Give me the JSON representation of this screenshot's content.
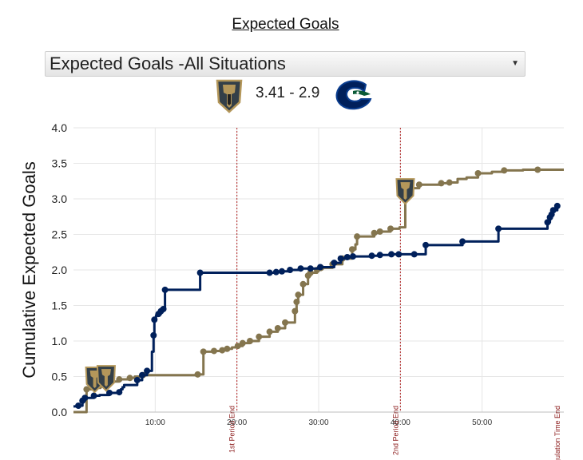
{
  "page": {
    "title": "Expected Goals",
    "dropdown": {
      "selected": "Expected Goals -All Situations"
    },
    "score_text": "3.41 - 2.9"
  },
  "colors": {
    "home": "#84754e",
    "away": "#00205b",
    "period_line": "#b22222",
    "grid": "#e6e6e6"
  },
  "icons": {
    "home_logo": "golden-knights-logo-icon",
    "away_logo": "canucks-logo-icon",
    "goal_marker": "golden-knights-goal-marker-icon"
  },
  "chart_data": {
    "type": "line",
    "ylabel": "Cumulative Expected Goals",
    "xlabel": "",
    "ylim": [
      0,
      4
    ],
    "xlim": [
      0,
      60
    ],
    "y_ticks": [
      "0.0",
      "0.5",
      "1.0",
      "1.5",
      "2.0",
      "2.5",
      "3.0",
      "3.5",
      "4.0"
    ],
    "x_ticks": [
      {
        "value": 10,
        "label": "10:00"
      },
      {
        "value": 20,
        "label": "20:00"
      },
      {
        "value": 30,
        "label": "30:00"
      },
      {
        "value": 40,
        "label": "40:00"
      },
      {
        "value": 50,
        "label": "50:00"
      }
    ],
    "period_lines": [
      {
        "x": 20,
        "label": "1st Period End"
      },
      {
        "x": 40,
        "label": "2nd Period End"
      },
      {
        "x": 60,
        "label": "Regulation Time End"
      }
    ],
    "series": [
      {
        "team": "home",
        "step_points": [
          [
            0,
            0
          ],
          [
            1.6,
            0
          ],
          [
            1.6,
            0.32
          ],
          [
            2.6,
            0.34
          ],
          [
            3.3,
            0.38
          ],
          [
            4.2,
            0.43
          ],
          [
            5.6,
            0.46
          ],
          [
            6.9,
            0.48
          ],
          [
            7.5,
            0.5
          ],
          [
            8.5,
            0.52
          ],
          [
            15.2,
            0.53
          ],
          [
            15.9,
            0.85
          ],
          [
            17.2,
            0.86
          ],
          [
            18.2,
            0.87
          ],
          [
            18.8,
            0.89
          ],
          [
            19.4,
            0.91
          ],
          [
            20.1,
            0.93
          ],
          [
            20.7,
            0.97
          ],
          [
            21.6,
            1.0
          ],
          [
            22.7,
            1.06
          ],
          [
            24.0,
            1.13
          ],
          [
            25.0,
            1.18
          ],
          [
            25.9,
            1.26
          ],
          [
            27.1,
            1.42
          ],
          [
            27.3,
            1.55
          ],
          [
            27.5,
            1.65
          ],
          [
            28.1,
            1.8
          ],
          [
            28.7,
            1.92
          ],
          [
            29.0,
            1.96
          ],
          [
            29.8,
            2.0
          ],
          [
            30.3,
            2.03
          ],
          [
            31.7,
            2.08
          ],
          [
            32.9,
            2.16
          ],
          [
            34.1,
            2.29
          ],
          [
            34.5,
            2.36
          ],
          [
            34.7,
            2.47
          ],
          [
            36.8,
            2.52
          ],
          [
            37.5,
            2.54
          ],
          [
            38.8,
            2.58
          ],
          [
            39.9,
            2.6
          ],
          [
            40.6,
            3.1
          ],
          [
            41.1,
            3.15
          ],
          [
            42.3,
            3.2
          ],
          [
            45.0,
            3.22
          ],
          [
            46.0,
            3.23
          ],
          [
            47.0,
            3.28
          ],
          [
            48.1,
            3.3
          ],
          [
            49.5,
            3.36
          ],
          [
            51.2,
            3.38
          ],
          [
            52.7,
            3.4
          ],
          [
            55.0,
            3.41
          ],
          [
            56.8,
            3.41
          ],
          [
            60,
            3.41
          ]
        ],
        "shots": [
          [
            1.6,
            0.32
          ],
          [
            2.6,
            0.34
          ],
          [
            3.3,
            0.38
          ],
          [
            4.2,
            0.43
          ],
          [
            5.6,
            0.46
          ],
          [
            6.9,
            0.48
          ],
          [
            8.5,
            0.52
          ],
          [
            15.2,
            0.53
          ],
          [
            15.9,
            0.85
          ],
          [
            17.2,
            0.86
          ],
          [
            18.2,
            0.87
          ],
          [
            18.8,
            0.89
          ],
          [
            20.1,
            0.93
          ],
          [
            20.7,
            0.97
          ],
          [
            21.6,
            1.0
          ],
          [
            22.7,
            1.06
          ],
          [
            24.0,
            1.13
          ],
          [
            25.0,
            1.18
          ],
          [
            25.9,
            1.26
          ],
          [
            27.1,
            1.42
          ],
          [
            27.3,
            1.55
          ],
          [
            27.5,
            1.65
          ],
          [
            28.1,
            1.8
          ],
          [
            28.7,
            1.92
          ],
          [
            29.0,
            1.96
          ],
          [
            29.8,
            2.0
          ],
          [
            30.3,
            2.03
          ],
          [
            31.7,
            2.08
          ],
          [
            32.9,
            2.16
          ],
          [
            34.1,
            2.29
          ],
          [
            34.7,
            2.47
          ],
          [
            36.8,
            2.52
          ],
          [
            37.5,
            2.54
          ],
          [
            38.8,
            2.58
          ],
          [
            41.1,
            3.15
          ],
          [
            42.3,
            3.2
          ],
          [
            45.0,
            3.22
          ],
          [
            46.0,
            3.23
          ],
          [
            49.5,
            3.36
          ],
          [
            52.7,
            3.4
          ],
          [
            56.8,
            3.41
          ]
        ],
        "goals": [
          [
            2.6,
            0.45
          ],
          [
            4.0,
            0.47
          ],
          [
            40.6,
            3.1
          ]
        ]
      },
      {
        "team": "away",
        "step_points": [
          [
            0,
            0.08
          ],
          [
            0.6,
            0.09
          ],
          [
            1.1,
            0.16
          ],
          [
            1.4,
            0.2
          ],
          [
            2.5,
            0.23
          ],
          [
            3.2,
            0.24
          ],
          [
            4.4,
            0.27
          ],
          [
            5.6,
            0.28
          ],
          [
            5.8,
            0.32
          ],
          [
            6.0,
            0.35
          ],
          [
            6.2,
            0.38
          ],
          [
            7.8,
            0.45
          ],
          [
            8.4,
            0.52
          ],
          [
            9.0,
            0.58
          ],
          [
            9.6,
            0.85
          ],
          [
            9.8,
            1.08
          ],
          [
            9.9,
            1.3
          ],
          [
            10.1,
            1.36
          ],
          [
            10.4,
            1.38
          ],
          [
            10.7,
            1.42
          ],
          [
            11.0,
            1.45
          ],
          [
            11.2,
            1.72
          ],
          [
            15.5,
            1.96
          ],
          [
            22.0,
            1.96
          ],
          [
            24.0,
            1.96
          ],
          [
            24.8,
            1.97
          ],
          [
            25.5,
            1.98
          ],
          [
            26.5,
            2.0
          ],
          [
            27.8,
            2.02
          ],
          [
            29.0,
            2.02
          ],
          [
            30.2,
            2.04
          ],
          [
            31.9,
            2.1
          ],
          [
            32.7,
            2.16
          ],
          [
            33.5,
            2.18
          ],
          [
            34.2,
            2.19
          ],
          [
            36.5,
            2.2
          ],
          [
            37.5,
            2.21
          ],
          [
            38.2,
            2.21
          ],
          [
            38.9,
            2.22
          ],
          [
            39.8,
            2.22
          ],
          [
            40.5,
            2.22
          ],
          [
            41.7,
            2.22
          ],
          [
            43.1,
            2.35
          ],
          [
            47.6,
            2.4
          ],
          [
            52.0,
            2.58
          ],
          [
            58.0,
            2.67
          ],
          [
            58.3,
            2.74
          ],
          [
            58.5,
            2.78
          ],
          [
            58.7,
            2.84
          ],
          [
            59.2,
            2.9
          ]
        ],
        "shots": [
          [
            0.6,
            0.09
          ],
          [
            1.1,
            0.16
          ],
          [
            1.4,
            0.2
          ],
          [
            2.5,
            0.23
          ],
          [
            4.4,
            0.27
          ],
          [
            5.6,
            0.28
          ],
          [
            7.8,
            0.45
          ],
          [
            8.4,
            0.52
          ],
          [
            9.0,
            0.58
          ],
          [
            9.8,
            1.08
          ],
          [
            9.9,
            1.3
          ],
          [
            10.4,
            1.38
          ],
          [
            10.7,
            1.42
          ],
          [
            11.0,
            1.45
          ],
          [
            11.2,
            1.72
          ],
          [
            15.5,
            1.96
          ],
          [
            24.0,
            1.96
          ],
          [
            24.8,
            1.97
          ],
          [
            25.5,
            1.98
          ],
          [
            26.5,
            2.0
          ],
          [
            27.8,
            2.02
          ],
          [
            29.0,
            2.02
          ],
          [
            30.2,
            2.04
          ],
          [
            31.9,
            2.1
          ],
          [
            32.7,
            2.16
          ],
          [
            33.5,
            2.18
          ],
          [
            34.2,
            2.19
          ],
          [
            36.5,
            2.2
          ],
          [
            37.5,
            2.21
          ],
          [
            38.9,
            2.22
          ],
          [
            39.8,
            2.22
          ],
          [
            41.7,
            2.22
          ],
          [
            43.1,
            2.35
          ],
          [
            47.6,
            2.4
          ],
          [
            52.0,
            2.58
          ],
          [
            58.0,
            2.67
          ],
          [
            58.3,
            2.74
          ],
          [
            58.5,
            2.78
          ],
          [
            58.7,
            2.84
          ],
          [
            59.2,
            2.9
          ]
        ],
        "goals": []
      }
    ]
  }
}
